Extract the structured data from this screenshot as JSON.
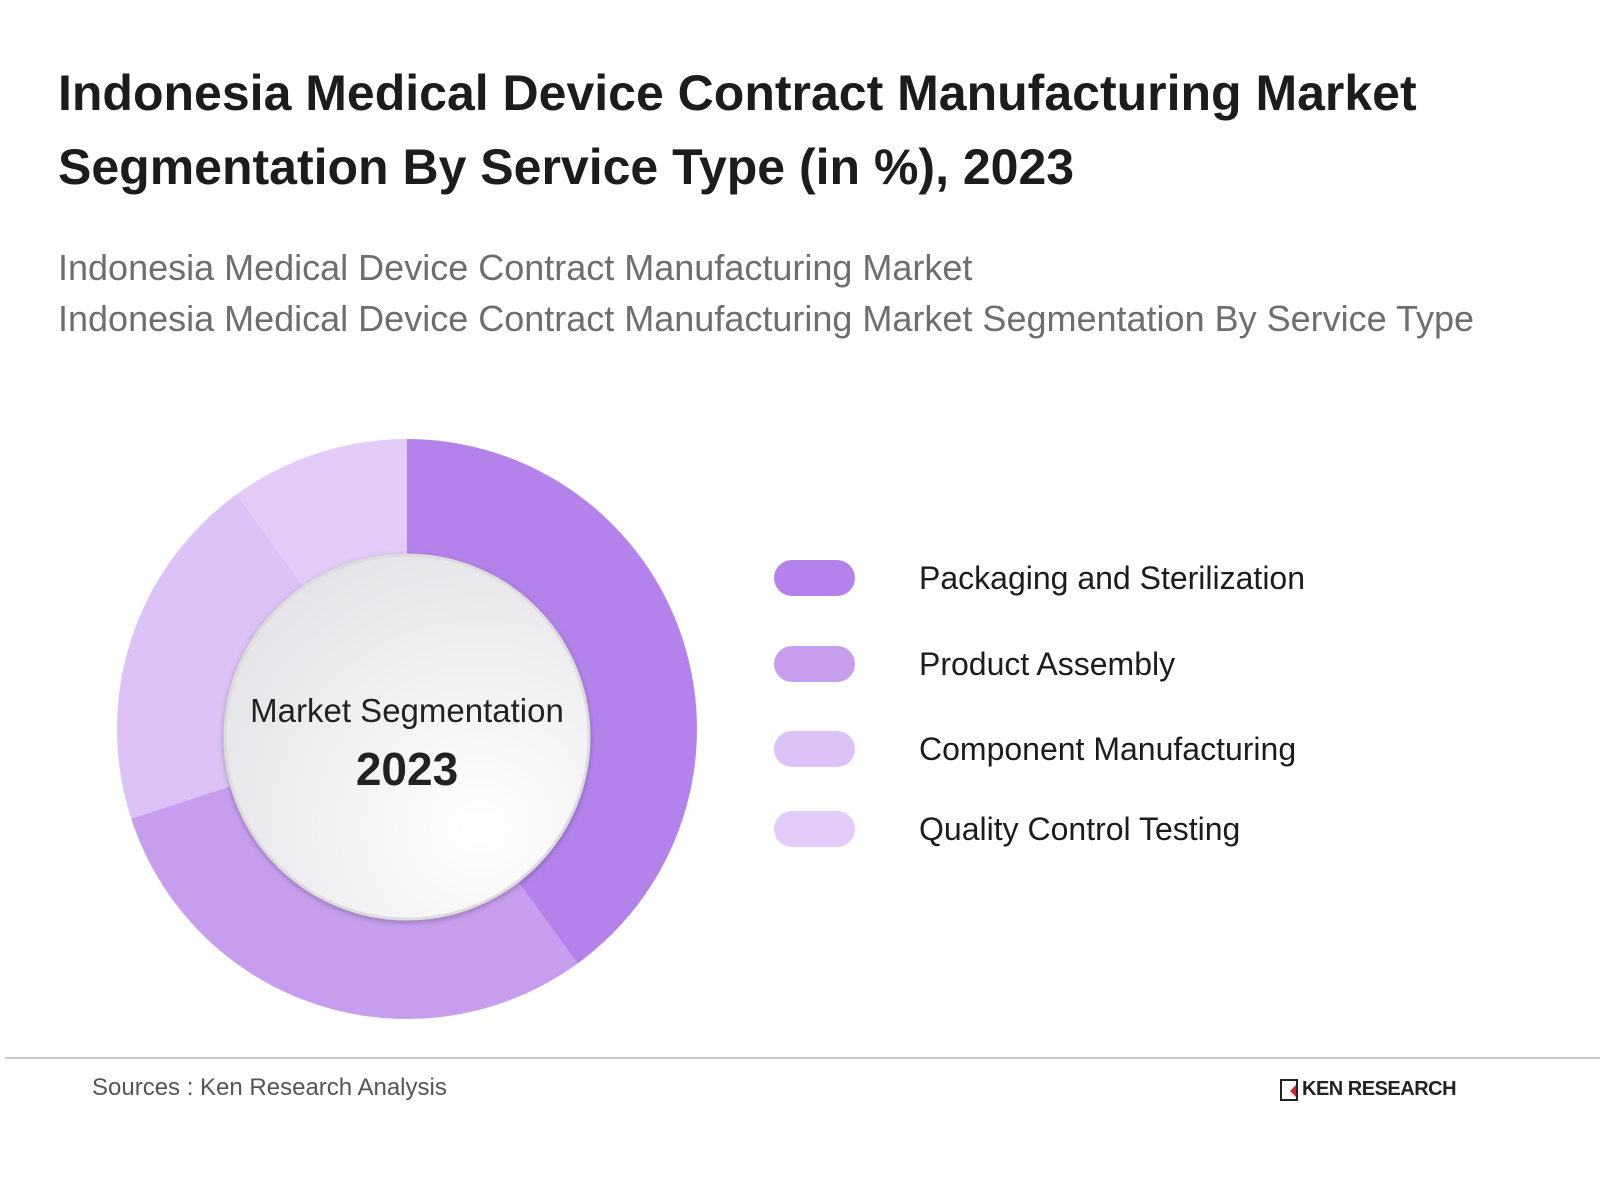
{
  "title": "Indonesia Medical Device Contract Manufacturing Market Segmentation By Service Type (in %), 2023",
  "subtitle_lines": [
    "Indonesia Medical Device Contract Manufacturing Market",
    "Indonesia Medical Device Contract Manufacturing Market Segmentation By Service Type"
  ],
  "center": {
    "label": "Market Segmentation",
    "year": "2023"
  },
  "chart_data": {
    "type": "pie",
    "variant": "donut",
    "title": "Indonesia Medical Device Contract Manufacturing Market Segmentation By Service Type (in %), 2023",
    "categories": [
      "Packaging and Sterilization",
      "Product Assembly",
      "Component Manufacturing",
      "Quality Control Testing"
    ],
    "values": [
      40,
      30,
      20,
      10
    ],
    "colors": [
      "#b383eb",
      "#c79eee",
      "#dcc2f6",
      "#e3ccf7"
    ],
    "legend_position": "right"
  },
  "footer": {
    "source": "Sources : Ken Research Analysis",
    "logo": "KEN RESEARCH"
  }
}
